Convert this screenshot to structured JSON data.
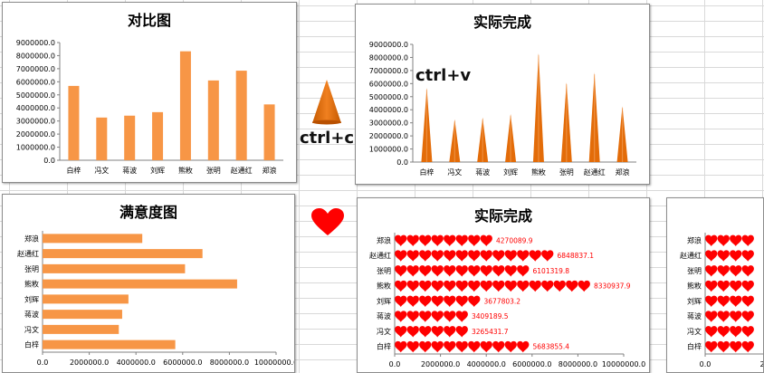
{
  "colors": {
    "bar": "#f79646",
    "cone": "#e36c09",
    "heart": "#ff0000",
    "label": "#ff0000"
  },
  "categories": [
    "白梓",
    "冯文",
    "蒋波",
    "刘辉",
    "熊敉",
    "张明",
    "赵通红",
    "郑浪"
  ],
  "values": [
    5683855.4,
    3265431.7,
    3409189.5,
    3677803.2,
    8330937.9,
    6101319.8,
    6848837.1,
    4270089.9
  ],
  "value_labels": [
    "5683855.4",
    "3265431.7",
    "3409189.5",
    "3677803.2",
    "8330937.9",
    "6101319.8",
    "6848837.1",
    "4270089.9"
  ],
  "y_ticks_vertical": [
    "0.0",
    "1000000.0",
    "2000000.0",
    "3000000.0",
    "4000000.0",
    "5000000.0",
    "6000000.0",
    "7000000.0",
    "8000000.0",
    "9000000.0"
  ],
  "x_ticks_horizontal": [
    "0.0",
    "2000000.0",
    "4000000.0",
    "6000000.0",
    "8000000.0",
    "10000000.0"
  ],
  "x_ticks_small": [
    "0.0",
    "2000000"
  ],
  "panels": {
    "compare": {
      "title": "对比图"
    },
    "actual": {
      "title": "实际完成"
    },
    "satisfaction": {
      "title": "满意度图"
    },
    "actual2": {
      "title": "实际完成"
    }
  },
  "labels": {
    "paste": "ctrl+v",
    "copy": "ctrl+c"
  },
  "chart_data": [
    {
      "type": "bar",
      "title": "对比图",
      "categories": [
        "白梓",
        "冯文",
        "蒋波",
        "刘辉",
        "熊敉",
        "张明",
        "赵通红",
        "郑浪"
      ],
      "values": [
        5683855.4,
        3265431.7,
        3409189.5,
        3677803.2,
        8330937.9,
        6101319.8,
        6848837.1,
        4270089.9
      ],
      "ylim": [
        0,
        9000000
      ],
      "grid": false
    },
    {
      "type": "bar",
      "title": "实际完成",
      "categories": [
        "白梓",
        "冯文",
        "蒋波",
        "刘辉",
        "熊敉",
        "张明",
        "赵通红",
        "郑浪"
      ],
      "values": [
        5683855.4,
        3265431.7,
        3409189.5,
        3677803.2,
        8330937.9,
        6101319.8,
        6848837.1,
        4270089.9
      ],
      "ylim": [
        0,
        9000000
      ],
      "grid": false
    },
    {
      "type": "bar",
      "title": "满意度图",
      "orientation": "horizontal",
      "categories": [
        "白梓",
        "冯文",
        "蒋波",
        "刘辉",
        "熊敉",
        "张明",
        "赵通红",
        "郑浪"
      ],
      "values": [
        5683855.4,
        3265431.7,
        3409189.5,
        3677803.2,
        8330937.9,
        6101319.8,
        6848837.1,
        4270089.9
      ],
      "xlim": [
        0,
        10000000
      ],
      "grid": false
    },
    {
      "type": "bar",
      "title": "实际完成",
      "orientation": "horizontal",
      "categories": [
        "白梓",
        "冯文",
        "蒋波",
        "刘辉",
        "熊敉",
        "张明",
        "赵通红",
        "郑浪"
      ],
      "values": [
        5683855.4,
        3265431.7,
        3409189.5,
        3677803.2,
        8330937.9,
        6101319.8,
        6848837.1,
        4270089.9
      ],
      "xlim": [
        0,
        10000000
      ],
      "grid": false
    },
    {
      "type": "bar",
      "orientation": "horizontal",
      "categories": [
        "白梓",
        "冯文",
        "蒋波",
        "刘辉",
        "熊敉",
        "张明",
        "赵通红",
        "郑浪"
      ],
      "xlim": [
        0,
        2000000
      ],
      "grid": false
    }
  ]
}
